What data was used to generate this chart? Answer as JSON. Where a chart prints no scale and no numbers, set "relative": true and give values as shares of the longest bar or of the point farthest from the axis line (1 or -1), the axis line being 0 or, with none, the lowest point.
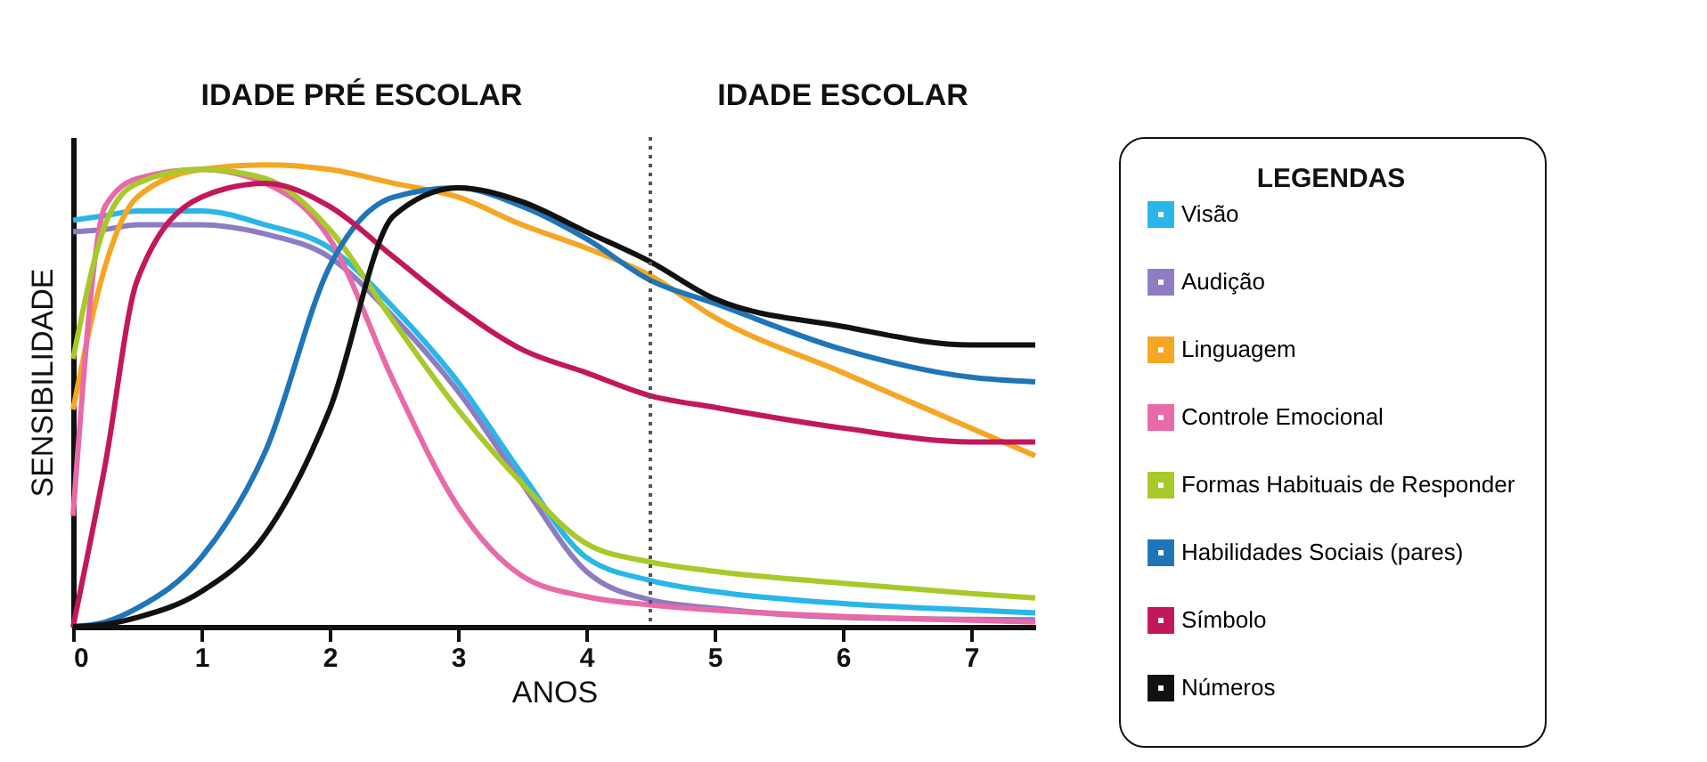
{
  "chart_data": {
    "type": "line",
    "relative": true,
    "xlabel": "ANOS",
    "ylabel": "SENSIBILIDADE",
    "legend_title": "LEGENDAS",
    "legend": "right",
    "grid": false,
    "marker": "none",
    "line_style": "solid",
    "xlim": [
      0,
      7.5
    ],
    "xticks": [
      0,
      1,
      2,
      3,
      4,
      5,
      6,
      7
    ],
    "x": [
      0,
      0.25,
      0.5,
      1,
      1.5,
      2,
      2.5,
      3,
      3.5,
      4,
      4.5,
      5,
      6,
      7,
      7.5
    ],
    "series": [
      {
        "name": "Visão",
        "color": "#29b6e8",
        "values": [
          0.88,
          0.89,
          0.9,
          0.9,
          0.87,
          0.82,
          0.69,
          0.53,
          0.33,
          0.15,
          0.1,
          0.076,
          0.05,
          0.036,
          0.03
        ]
      },
      {
        "name": "Audição",
        "color": "#8e7cc3",
        "values": [
          0.855,
          0.86,
          0.87,
          0.87,
          0.85,
          0.8,
          0.67,
          0.51,
          0.31,
          0.12,
          0.058,
          0.04,
          0.02,
          0.016,
          0.015
        ]
      },
      {
        "name": "Linguagem",
        "color": "#f5a623",
        "values": [
          0.47,
          0.78,
          0.93,
          0.99,
          1.0,
          0.99,
          0.96,
          0.93,
          0.87,
          0.82,
          0.76,
          0.67,
          0.55,
          0.43,
          0.37
        ]
      },
      {
        "name": "Controle Emocional",
        "color": "#e86aa8",
        "values": [
          0.24,
          0.91,
          0.97,
          0.99,
          0.96,
          0.84,
          0.53,
          0.26,
          0.11,
          0.065,
          0.047,
          0.036,
          0.022,
          0.014,
          0.01
        ]
      },
      {
        "name": "Formas Habituais de Responder",
        "color": "#a8c92a",
        "values": [
          0.58,
          0.87,
          0.96,
          0.99,
          0.97,
          0.86,
          0.66,
          0.47,
          0.31,
          0.18,
          0.14,
          0.12,
          0.094,
          0.072,
          0.062
        ]
      },
      {
        "name": "Habilidades Sociais (pares)",
        "color": "#1f75b8",
        "values": [
          0,
          0.01,
          0.04,
          0.15,
          0.38,
          0.78,
          0.93,
          0.95,
          0.91,
          0.84,
          0.75,
          0.7,
          0.6,
          0.54,
          0.53
        ]
      },
      {
        "name": "Símbolo",
        "color": "#c2185b",
        "values": [
          0,
          0.35,
          0.75,
          0.93,
          0.96,
          0.91,
          0.8,
          0.69,
          0.6,
          0.55,
          0.5,
          0.475,
          0.43,
          0.4,
          0.4
        ]
      },
      {
        "name": "Números",
        "color": "#111111",
        "values": [
          0,
          0.005,
          0.02,
          0.076,
          0.2,
          0.47,
          0.89,
          0.95,
          0.92,
          0.855,
          0.79,
          0.71,
          0.65,
          0.61,
          0.61
        ]
      }
    ],
    "ref_lines": [
      {
        "axis": "x",
        "value": 4.5,
        "color": "#555555",
        "line_style": "dotted"
      }
    ],
    "annotations": [
      "IDADE PRÉ ESCOLAR",
      "IDADE ESCOLAR"
    ]
  }
}
